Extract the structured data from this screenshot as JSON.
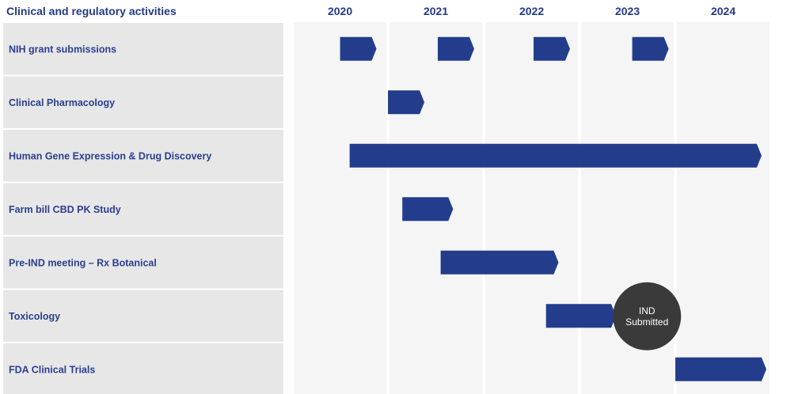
{
  "chart_data": {
    "type": "gantt",
    "title": "Clinical and regulatory activities",
    "years": [
      "2020",
      "2021",
      "2022",
      "2023",
      "2024"
    ],
    "x_range": [
      2019.45,
      2024.45
    ],
    "colors": {
      "bar": "#233d8c",
      "label_text": "#2a3f8f",
      "row_bg": "#e7e7e7",
      "year_band": "#f5f5f5",
      "milestone": "#3a3a3a"
    },
    "tasks": [
      {
        "name": "NIH grant submissions",
        "bars": [
          {
            "start": 2020.0,
            "end": 2020.38
          },
          {
            "start": 2021.02,
            "end": 2021.4
          },
          {
            "start": 2022.02,
            "end": 2022.4
          },
          {
            "start": 2023.05,
            "end": 2023.43
          }
        ]
      },
      {
        "name": "Clinical Pharmacology",
        "bars": [
          {
            "start": 2020.5,
            "end": 2020.88
          }
        ]
      },
      {
        "name": "Human Gene Expression & Drug Discovery",
        "bars": [
          {
            "start": 2020.1,
            "end": 2024.4
          }
        ]
      },
      {
        "name": "Farm bill CBD PK Study",
        "bars": [
          {
            "start": 2020.65,
            "end": 2021.18
          }
        ]
      },
      {
        "name": "Pre-IND meeting – Rx Botanical",
        "bars": [
          {
            "start": 2021.05,
            "end": 2022.28
          }
        ]
      },
      {
        "name": "Toxicology",
        "bars": [
          {
            "start": 2022.15,
            "end": 2022.88
          }
        ]
      },
      {
        "name": "FDA Clinical Trials",
        "bars": [
          {
            "start": 2023.5,
            "end": 2024.45
          }
        ]
      }
    ],
    "milestones": [
      {
        "label": "IND Submitted",
        "lines": [
          "IND",
          "Submitted"
        ],
        "row": 5,
        "x": 2023.2
      }
    ]
  }
}
